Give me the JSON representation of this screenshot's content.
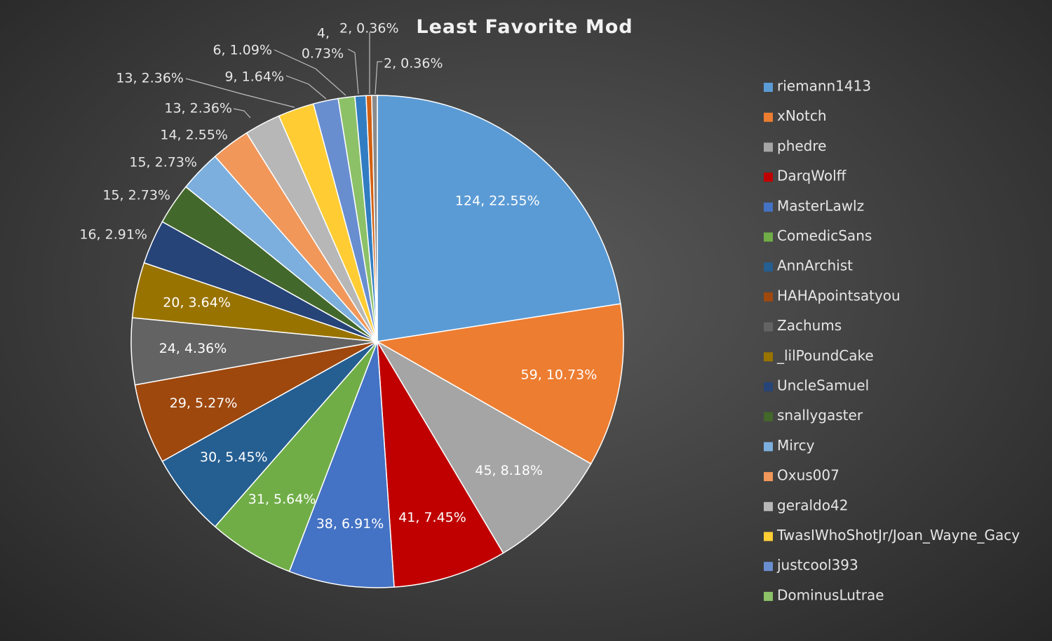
{
  "chart_data": {
    "type": "pie",
    "title": "Least Favorite Mod",
    "legend_position": "right",
    "slices": [
      {
        "name": "riemann1413",
        "value": 124,
        "percent": "22.55%",
        "label": "124, 22.55%",
        "color": "#5b9bd5"
      },
      {
        "name": "xNotch",
        "value": 59,
        "percent": "10.73%",
        "label": "59, 10.73%",
        "color": "#ed7d31"
      },
      {
        "name": "phedre",
        "value": 45,
        "percent": "8.18%",
        "label": "45, 8.18%",
        "color": "#a5a5a5"
      },
      {
        "name": "DarqWolff",
        "value": 41,
        "percent": "7.45%",
        "label": "41, 7.45%",
        "color": "#c00000"
      },
      {
        "name": "MasterLawlz",
        "value": 38,
        "percent": "6.91%",
        "label": "38, 6.91%",
        "color": "#4472c4"
      },
      {
        "name": "ComedicSans",
        "value": 31,
        "percent": "5.64%",
        "label": "31, 5.64%",
        "color": "#70ad47"
      },
      {
        "name": "AnnArchist",
        "value": 30,
        "percent": "5.45%",
        "label": "30, 5.45%",
        "color": "#255e91"
      },
      {
        "name": "HAHApointsatyou",
        "value": 29,
        "percent": "5.27%",
        "label": "29, 5.27%",
        "color": "#9e480e"
      },
      {
        "name": "Zachums",
        "value": 24,
        "percent": "4.36%",
        "label": "24, 4.36%",
        "color": "#636363"
      },
      {
        "name": "_lilPoundCake",
        "value": 20,
        "percent": "3.64%",
        "label": "20, 3.64%",
        "color": "#997300"
      },
      {
        "name": "UncleSamuel",
        "value": 16,
        "percent": "2.91%",
        "label": "16, 2.91%",
        "color": "#264478"
      },
      {
        "name": "snallygaster",
        "value": 15,
        "percent": "2.73%",
        "label": "15, 2.73%",
        "color": "#43682b"
      },
      {
        "name": "Mircy",
        "value": 15,
        "percent": "2.73%",
        "label": "15, 2.73%",
        "color": "#7cafdd"
      },
      {
        "name": "Oxus007",
        "value": 14,
        "percent": "2.55%",
        "label": "14, 2.55%",
        "color": "#f1975a"
      },
      {
        "name": "geraldo42",
        "value": 13,
        "percent": "2.36%",
        "label": "13, 2.36%",
        "color": "#b7b7b7"
      },
      {
        "name": "TwasIWhoShotJr/Joan_Wayne_Gacy",
        "value": 13,
        "percent": "2.36%",
        "label": "13, 2.36%",
        "color": "#ffcd33"
      },
      {
        "name": "justcool393",
        "value": 9,
        "percent": "1.64%",
        "label": "9, 1.64%",
        "color": "#698ed0"
      },
      {
        "name": "DominusLutrae",
        "value": 6,
        "percent": "1.09%",
        "label": "6, 1.09%",
        "color": "#8cc168"
      },
      {
        "name": "",
        "value": 4,
        "percent": "0.73%",
        "label": "4, 0.73%",
        "color": "#327dc2"
      },
      {
        "name": "",
        "value": 2,
        "percent": "0.36%",
        "label": "2, 0.36%",
        "color": "#d26012"
      },
      {
        "name": "",
        "value": 2,
        "percent": "0.36%",
        "label": "2, 0.36%",
        "color": "#8b8b8b"
      }
    ]
  }
}
